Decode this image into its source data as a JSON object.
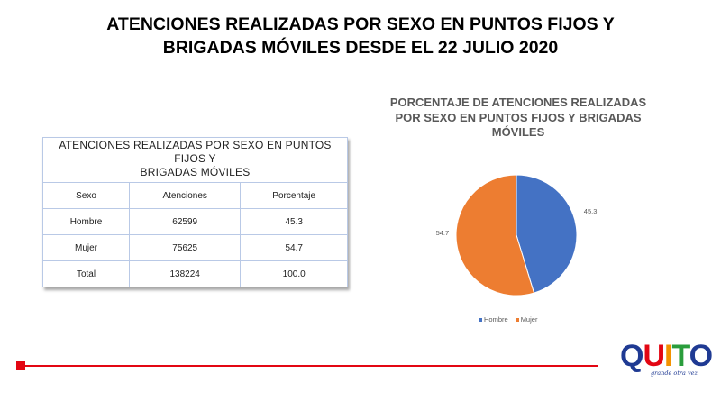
{
  "slide": {
    "title_line1": "ATENCIONES REALIZADAS POR SEXO EN PUNTOS FIJOS Y",
    "title_line2": "BRIGADAS MÓVILES DESDE EL 22 JULIO 2020"
  },
  "table": {
    "title_line1": "ATENCIONES REALIZADAS POR SEXO EN PUNTOS FIJOS Y",
    "title_line2": "BRIGADAS MÓVILES",
    "headers": [
      "Sexo",
      "Atenciones",
      "Porcentaje"
    ],
    "rows": [
      [
        "Hombre",
        "62599",
        "45.3"
      ],
      [
        "Mujer",
        "75625",
        "54.7"
      ],
      [
        "Total",
        "138224",
        "100.0"
      ]
    ]
  },
  "chart_data": {
    "type": "pie",
    "title": "PORCENTAJE DE ATENCIONES REALIZADAS POR SEXO EN PUNTOS FIJOS Y BRIGADAS MÓVILES",
    "title_lines": [
      "PORCENTAJE DE ATENCIONES REALIZADAS",
      "POR SEXO EN PUNTOS FIJOS Y BRIGADAS",
      "MÓVILES"
    ],
    "categories": [
      "Hombre",
      "Mujer"
    ],
    "values": [
      45.3,
      54.7
    ],
    "labels": [
      "45.3",
      "54.7"
    ],
    "colors": [
      "#4472c4",
      "#ed7d31"
    ],
    "legend_position": "bottom"
  },
  "logo": {
    "letters": [
      "Q",
      "U",
      "I",
      "T",
      "O"
    ],
    "letter_colors": [
      "#1f3a93",
      "#e30613",
      "#f39200",
      "#2a9d3c",
      "#1f3a93"
    ],
    "tagline": "grande otra vez"
  }
}
